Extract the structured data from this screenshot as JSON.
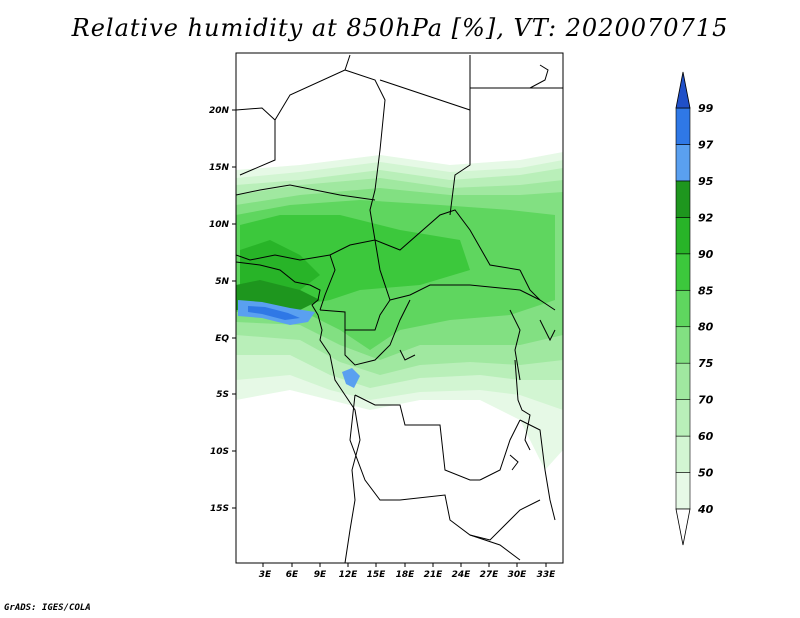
{
  "title": "Relative humidity at 850hPa [%], VT: 2020070715",
  "credit": "GrADS: IGES/COLA",
  "map": {
    "lon_labels": [
      "3E",
      "6E",
      "9E",
      "12E",
      "15E",
      "18E",
      "21E",
      "24E",
      "27E",
      "30E",
      "33E"
    ],
    "lat_labels": [
      "20N",
      "15N",
      "10N",
      "5N",
      "EQ",
      "5S",
      "10S",
      "15S"
    ]
  },
  "colorbar": {
    "levels": [
      "40",
      "50",
      "60",
      "70",
      "75",
      "80",
      "85",
      "90",
      "92",
      "95",
      "97",
      "99"
    ],
    "colors": [
      "#ffffff",
      "#e6f9e6",
      "#d2f5d2",
      "#b9efb9",
      "#a0e8a0",
      "#82e082",
      "#5fd65f",
      "#3cc83c",
      "#28b428",
      "#1e961e",
      "#5aa0f0",
      "#2f78e6",
      "#2050c8"
    ]
  }
}
